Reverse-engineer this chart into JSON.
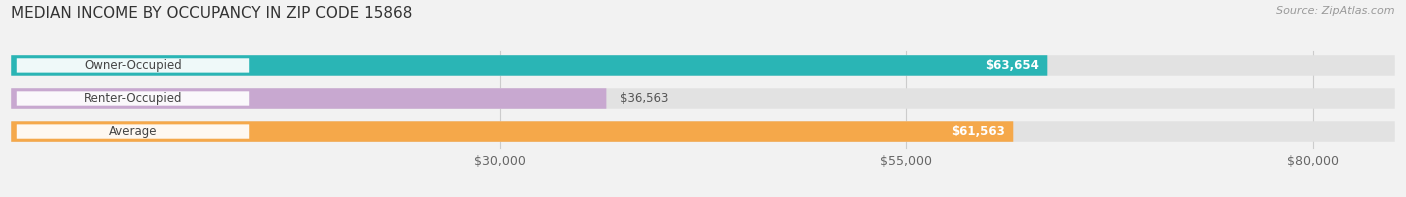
{
  "title": "MEDIAN INCOME BY OCCUPANCY IN ZIP CODE 15868",
  "source_text": "Source: ZipAtlas.com",
  "categories": [
    "Owner-Occupied",
    "Renter-Occupied",
    "Average"
  ],
  "values": [
    63654,
    36563,
    61563
  ],
  "bar_colors": [
    "#2ab5b5",
    "#c8a8d0",
    "#f5a84a"
  ],
  "label_colors": [
    "#ffffff",
    "#555555",
    "#ffffff"
  ],
  "value_labels": [
    "$63,654",
    "$36,563",
    "$61,563"
  ],
  "xlim": [
    0,
    85000
  ],
  "xticks": [
    30000,
    55000,
    80000
  ],
  "xtick_labels": [
    "$30,000",
    "$55,000",
    "$80,000"
  ],
  "background_color": "#f2f2f2",
  "bar_background_color": "#e2e2e2",
  "title_fontsize": 11,
  "tick_fontsize": 9,
  "bar_height": 0.62
}
